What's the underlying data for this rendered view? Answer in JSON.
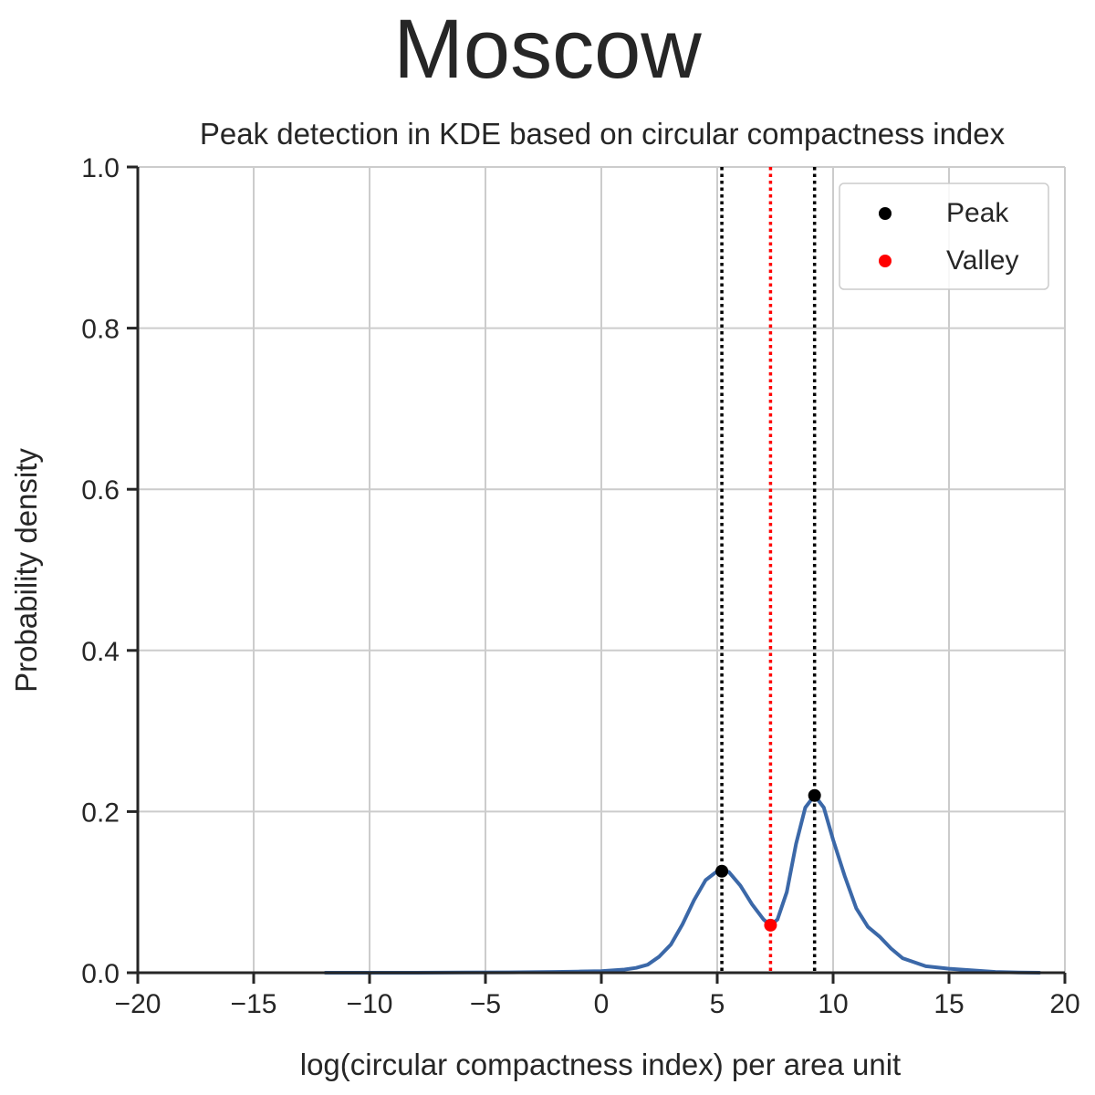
{
  "chart_data": {
    "type": "line",
    "suptitle": "Moscow",
    "title": "Peak detection in KDE based on circular compactness index",
    "xlabel": "log(circular compactness index) per area unit",
    "ylabel": "Probability density",
    "xlim": [
      -20,
      20
    ],
    "ylim": [
      0,
      1.0
    ],
    "xticks": [
      -20,
      -15,
      -10,
      -5,
      0,
      5,
      10,
      15,
      20
    ],
    "xtick_labels": [
      "−20",
      "−15",
      "−10",
      "−5",
      "0",
      "5",
      "10",
      "15",
      "20"
    ],
    "yticks": [
      0,
      0.2,
      0.4,
      0.6,
      0.8,
      1.0
    ],
    "ytick_labels": [
      "0.0",
      "0.2",
      "0.4",
      "0.6",
      "0.8",
      "1.0"
    ],
    "grid": true,
    "legend_position": "top-right",
    "series": [
      {
        "color": "#3b68a8",
        "x": [
          -11.9,
          -8,
          -4,
          -2,
          -1,
          0,
          1,
          1.5,
          2,
          2.5,
          3,
          3.5,
          4,
          4.5,
          5,
          5.2,
          5.5,
          6,
          6.5,
          7,
          7.3,
          7.6,
          8,
          8.4,
          8.8,
          9.2,
          9.6,
          10,
          10.5,
          11,
          11.5,
          12,
          12.5,
          13,
          14,
          15,
          16,
          17,
          18,
          18.9
        ],
        "y": [
          0.0,
          0.0,
          0.0005,
          0.001,
          0.0015,
          0.002,
          0.004,
          0.006,
          0.01,
          0.02,
          0.035,
          0.06,
          0.09,
          0.115,
          0.126,
          0.127,
          0.125,
          0.108,
          0.085,
          0.066,
          0.059,
          0.066,
          0.1,
          0.16,
          0.205,
          0.22,
          0.205,
          0.165,
          0.12,
          0.08,
          0.057,
          0.045,
          0.03,
          0.018,
          0.008,
          0.005,
          0.003,
          0.001,
          0.0003,
          0.0
        ]
      }
    ],
    "peaks": {
      "name": "Peak",
      "color": "#000000",
      "x": [
        5.2,
        9.2
      ],
      "y": [
        0.126,
        0.22
      ]
    },
    "valleys": {
      "name": "Valley",
      "color": "#ff0000",
      "x": [
        7.3
      ],
      "y": [
        0.059
      ]
    },
    "vlines": [
      {
        "x": 5.2,
        "color": "#000000"
      },
      {
        "x": 9.2,
        "color": "#000000"
      },
      {
        "x": 7.3,
        "color": "#ff0000"
      }
    ]
  }
}
